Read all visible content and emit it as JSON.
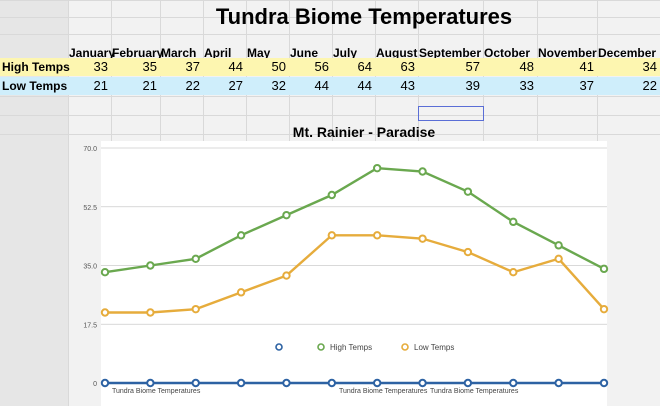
{
  "sheet_title": "Tundra Biome Temperatures",
  "months": [
    "January",
    "February",
    "March",
    "April",
    "May",
    "June",
    "July",
    "August",
    "September",
    "October",
    "November",
    "December"
  ],
  "rows": {
    "high": {
      "label": "High Temps",
      "values": [
        33,
        35,
        37,
        44,
        50,
        56,
        64,
        63,
        57,
        48,
        41,
        34
      ]
    },
    "low": {
      "label": "Low Temps",
      "values": [
        21,
        21,
        22,
        27,
        32,
        44,
        44,
        43,
        39,
        33,
        37,
        22
      ]
    }
  },
  "chart_data": {
    "type": "line",
    "title": "Mt. Rainier - Paradise",
    "ylim": [
      0,
      70
    ],
    "yticks": [
      "0",
      "17.5",
      "35.0",
      "52.5",
      "70.0"
    ],
    "series": [
      {
        "name": "",
        "color": "#2d62a3",
        "values": [
          0,
          0,
          0,
          0,
          0,
          0,
          0,
          0,
          0,
          0,
          0,
          0
        ]
      },
      {
        "name": "High Temps",
        "color": "#6aa84f",
        "values": [
          33,
          35,
          37,
          44,
          50,
          56,
          64,
          63,
          57,
          48,
          41,
          34
        ]
      },
      {
        "name": "Low Temps",
        "color": "#e6ac3c",
        "values": [
          21,
          21,
          22,
          27,
          32,
          44,
          44,
          43,
          39,
          33,
          37,
          22
        ]
      }
    ],
    "bottom_labels": [
      "Tundra Biome Temperatures",
      "Tundra Biome Temperatures",
      "Tundra Biome Temperatures"
    ]
  }
}
